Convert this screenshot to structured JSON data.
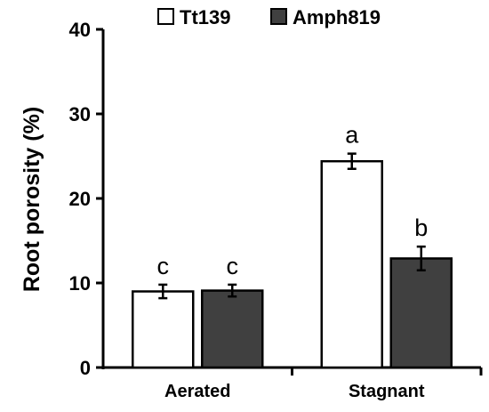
{
  "chart_data": {
    "type": "bar",
    "categories": [
      "Aerated",
      "Stagnant"
    ],
    "series": [
      {
        "name": "Tt139",
        "color": "#ffffff",
        "values": [
          9.0,
          24.4
        ],
        "errors": [
          0.8,
          0.9
        ],
        "letters": [
          "c",
          "a"
        ]
      },
      {
        "name": "Amph819",
        "color": "#404040",
        "values": [
          9.1,
          12.9
        ],
        "errors": [
          0.7,
          1.4
        ],
        "letters": [
          "c",
          "b"
        ]
      }
    ],
    "ylabel": "Root porosity (%)",
    "xlabel": "",
    "ylim": [
      0,
      40
    ],
    "yticks": [
      0,
      10,
      20,
      30,
      40
    ],
    "legend_position": "top",
    "grid": false
  }
}
